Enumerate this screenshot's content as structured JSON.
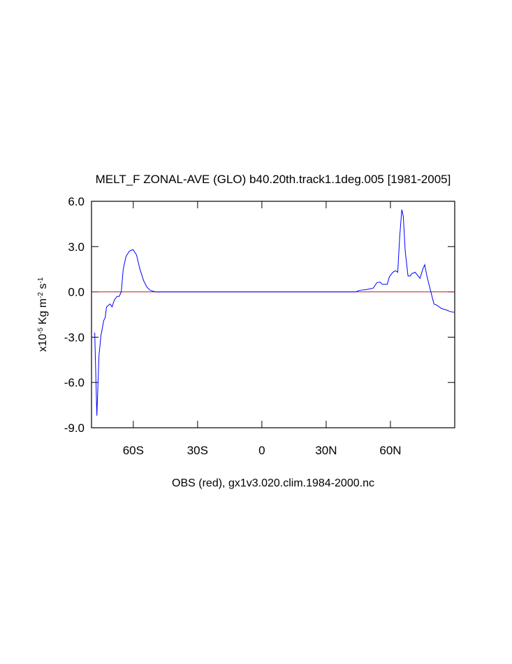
{
  "chart_data": {
    "type": "line",
    "title": "MELT_F ZONAL-AVE (GLO) b40.20th.track1.1deg.005 [1981-2005]",
    "x_label": "OBS (red), gx1v3.020.clim.1984-2000.nc",
    "y_label": [
      "x10",
      "-5",
      " Kg m",
      "-2",
      " s",
      "-1"
    ],
    "xlim": [
      -79.5,
      90
    ],
    "ylim": [
      -9,
      6
    ],
    "xticks": [
      {
        "value": -60,
        "label": "60S"
      },
      {
        "value": -30,
        "label": "30S"
      },
      0,
      {
        "value": 30,
        "label": "30N"
      },
      {
        "value": 60,
        "label": "60N"
      }
    ],
    "yticks": [
      {
        "value": -9,
        "label": "-9.0"
      },
      {
        "value": -6,
        "label": "-6.0"
      },
      {
        "value": -3,
        "label": "-3.0"
      },
      {
        "value": 0,
        "label": "0.0"
      },
      {
        "value": 3,
        "label": "3.0"
      },
      {
        "value": 6,
        "label": "6.0"
      }
    ],
    "grid": false,
    "series": [
      {
        "color": "#0000ff",
        "x": [
          -78.0,
          -77.0,
          -76.0,
          -75.1,
          -73.8,
          -73.1,
          -72.5,
          -70.8,
          -69.9,
          -68.9,
          -67.6,
          -66.6,
          -65.6,
          -64.7,
          -63.4,
          -61.8,
          -60.1,
          -58.5,
          -56.9,
          -55.2,
          -53.6,
          -52.0,
          -49.7,
          43.9,
          45.5,
          48.7,
          52.0,
          53.6,
          55.2,
          56.2,
          58.5,
          59.5,
          61.1,
          62.4,
          63.4,
          64.3,
          65.3,
          66.0,
          66.9,
          68.2,
          69.2,
          69.9,
          71.5,
          73.8,
          75.1,
          76.0,
          77.0,
          78.6,
          80.3,
          81.9,
          83.8,
          86.1,
          87.8,
          89.7
        ],
        "values": [
          -2.7,
          -8.2,
          -4.2,
          -2.9,
          -1.9,
          -1.7,
          -1.0,
          -0.8,
          -1.0,
          -0.55,
          -0.3,
          -0.3,
          0,
          1.5,
          2.35,
          2.7,
          2.8,
          2.45,
          1.5,
          0.75,
          0.3,
          0.1,
          0,
          0,
          0.1,
          0.15,
          0.25,
          0.6,
          0.65,
          0.5,
          0.5,
          1.0,
          1.3,
          1.4,
          1.3,
          3.6,
          5.45,
          5.0,
          2.7,
          1.05,
          1.05,
          1.2,
          1.3,
          0.9,
          1.5,
          1.8,
          1.05,
          0.15,
          -0.8,
          -0.9,
          -1.1,
          -1.2,
          -1.3,
          -1.35
        ]
      },
      {
        "color": "#b22222",
        "x": [
          -79.5,
          90
        ],
        "values": [
          0,
          0
        ]
      }
    ]
  }
}
